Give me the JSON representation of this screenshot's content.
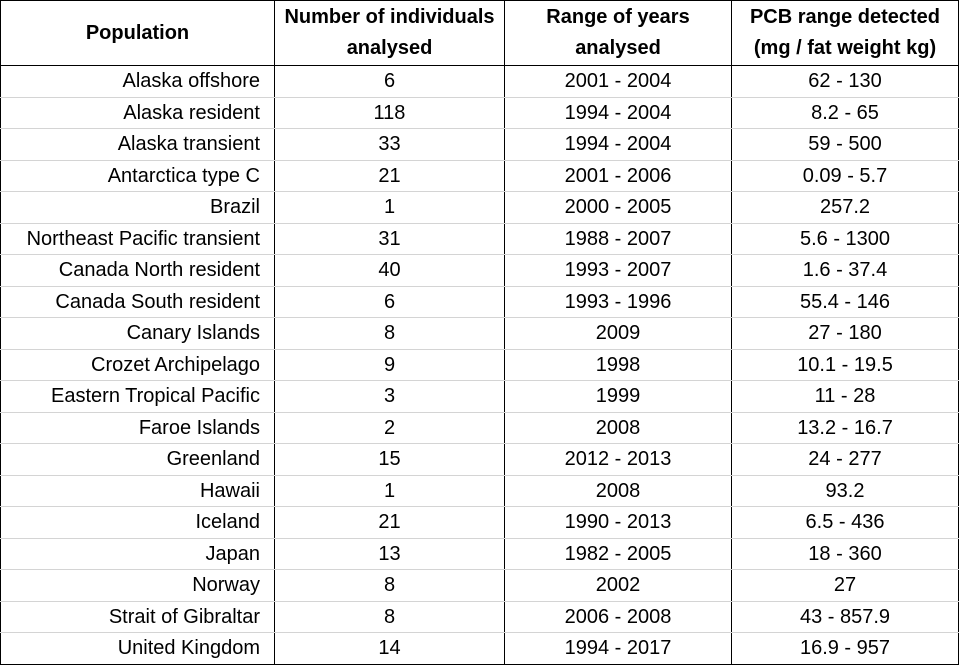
{
  "headers": {
    "population": "Population",
    "individuals": "Number of individuals analysed",
    "years": "Range of years analysed",
    "pcb": "PCB range detected (mg / fat weight kg)"
  },
  "rows": [
    {
      "population": "Alaska offshore",
      "individuals": "6",
      "years": "2001 - 2004",
      "pcb": "62 - 130"
    },
    {
      "population": "Alaska resident",
      "individuals": "118",
      "years": "1994 - 2004",
      "pcb": "8.2 - 65"
    },
    {
      "population": "Alaska transient",
      "individuals": "33",
      "years": "1994 - 2004",
      "pcb": "59 - 500"
    },
    {
      "population": "Antarctica type C",
      "individuals": "21",
      "years": "2001 - 2006",
      "pcb": "0.09 - 5.7"
    },
    {
      "population": "Brazil",
      "individuals": "1",
      "years": "2000 - 2005",
      "pcb": "257.2"
    },
    {
      "population": "Northeast Pacific transient",
      "individuals": "31",
      "years": "1988 - 2007",
      "pcb": "5.6 - 1300"
    },
    {
      "population": "Canada North resident",
      "individuals": "40",
      "years": "1993 - 2007",
      "pcb": "1.6 - 37.4"
    },
    {
      "population": "Canada South resident",
      "individuals": "6",
      "years": "1993 - 1996",
      "pcb": "55.4 - 146"
    },
    {
      "population": "Canary Islands",
      "individuals": "8",
      "years": "2009",
      "pcb": "27 - 180"
    },
    {
      "population": "Crozet Archipelago",
      "individuals": "9",
      "years": "1998",
      "pcb": "10.1 - 19.5"
    },
    {
      "population": "Eastern Tropical Pacific",
      "individuals": "3",
      "years": "1999",
      "pcb": "11 - 28"
    },
    {
      "population": "Faroe Islands",
      "individuals": "2",
      "years": "2008",
      "pcb": "13.2 - 16.7"
    },
    {
      "population": "Greenland",
      "individuals": "15",
      "years": "2012 - 2013",
      "pcb": "24 - 277"
    },
    {
      "population": "Hawaii",
      "individuals": "1",
      "years": "2008",
      "pcb": "93.2"
    },
    {
      "population": "Iceland",
      "individuals": "21",
      "years": "1990 - 2013",
      "pcb": "6.5 - 436"
    },
    {
      "population": "Japan",
      "individuals": "13",
      "years": "1982 - 2005",
      "pcb": "18 - 360"
    },
    {
      "population": "Norway",
      "individuals": "8",
      "years": "2002",
      "pcb": "27"
    },
    {
      "population": "Strait of Gibraltar",
      "individuals": "8",
      "years": "2006 - 2008",
      "pcb": "43 - 857.9"
    },
    {
      "population": "United Kingdom",
      "individuals": "14",
      "years": "1994 - 2017",
      "pcb": "16.9 - 957"
    }
  ]
}
